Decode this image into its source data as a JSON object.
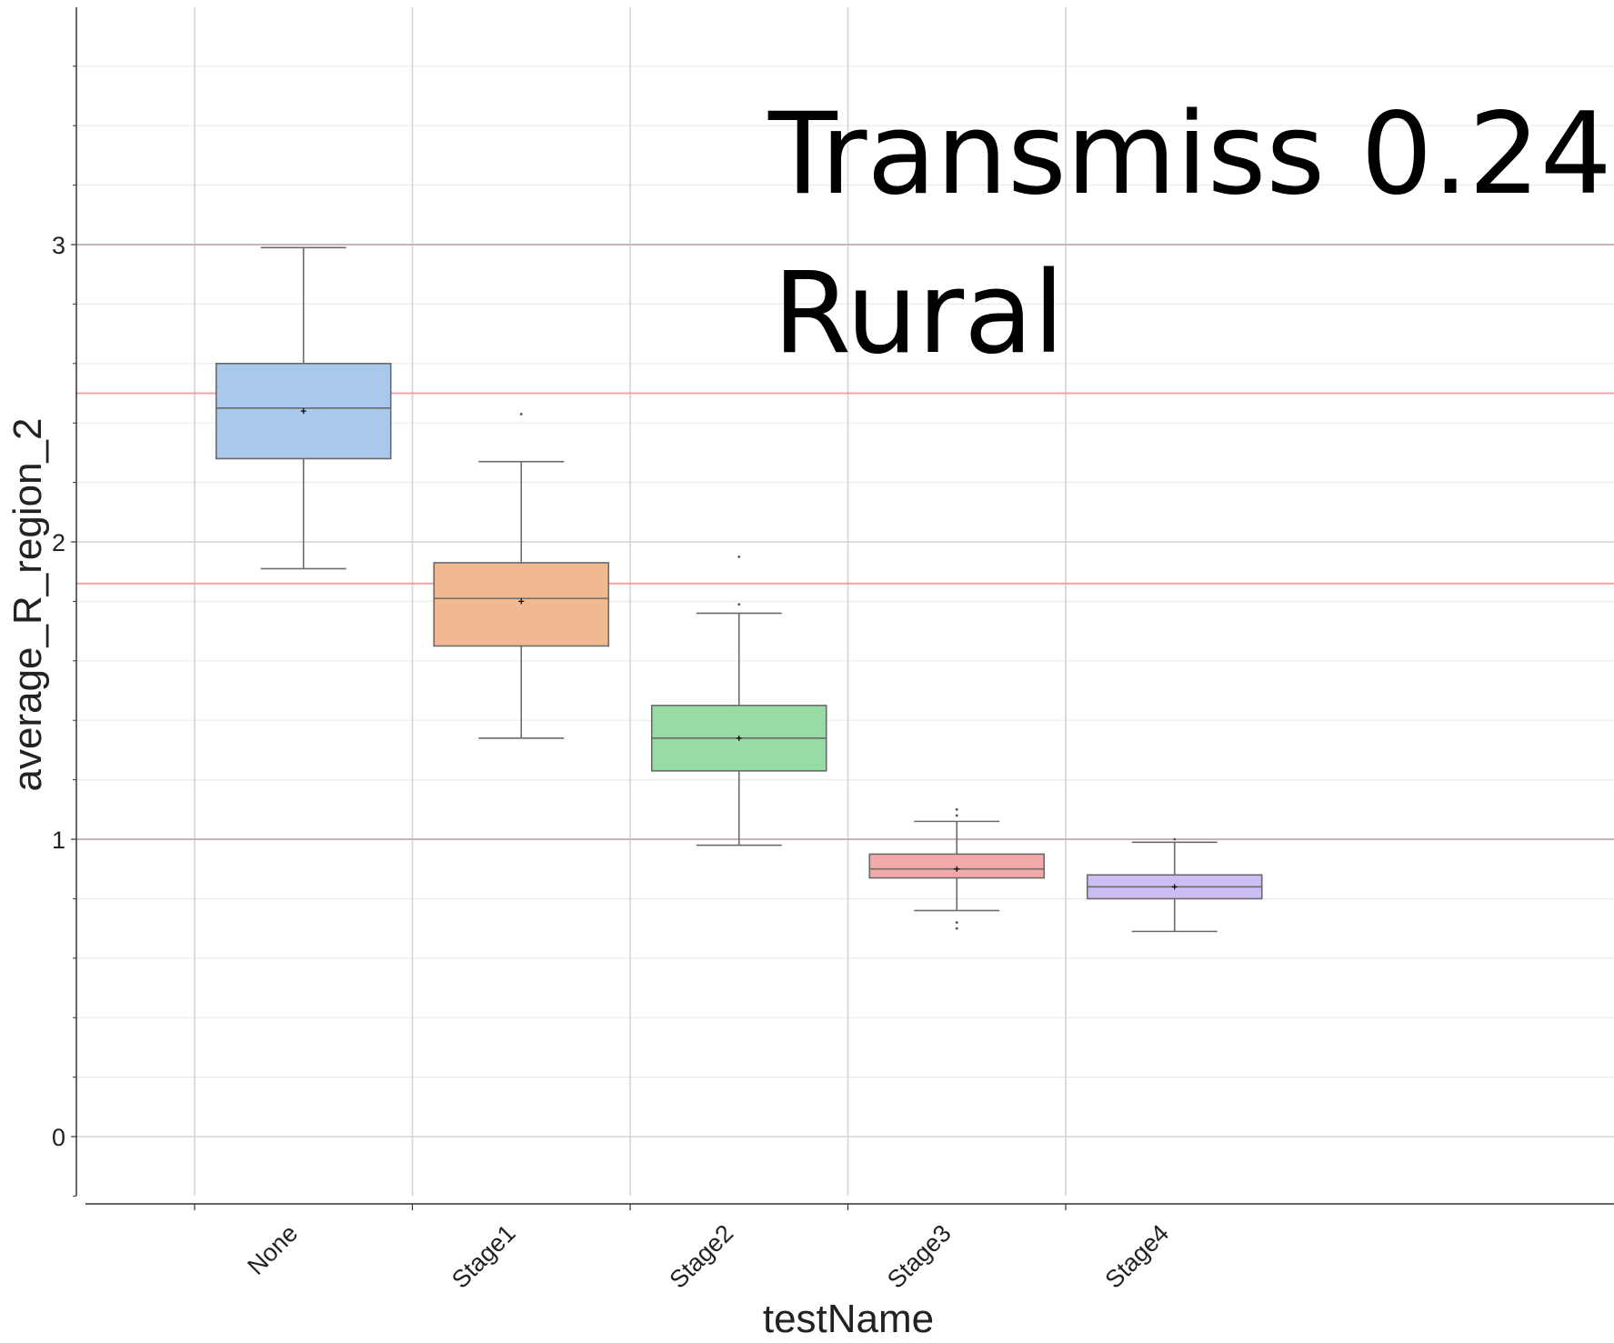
{
  "chart_data": {
    "type": "box",
    "xlabel": "testName",
    "ylabel": "average_R_region_2",
    "ylim": [
      -0.2,
      4.0
    ],
    "yticks": [
      0,
      1,
      2,
      3
    ],
    "grid": "on",
    "annotations": [
      "Transmiss 0.24",
      "Rural"
    ],
    "reference_lines": [
      {
        "y": 3.0,
        "color": "#c8b4b4"
      },
      {
        "y": 2.5,
        "color": "#f4a0a0"
      },
      {
        "y": 1.86,
        "color": "#f4a0a0"
      },
      {
        "y": 1.0,
        "color": "#c8b4b4"
      }
    ],
    "categories": [
      "None",
      "Stage1",
      "Stage2",
      "Stage3",
      "Stage4"
    ],
    "boxes": [
      {
        "name": "None",
        "whisker_low": 1.91,
        "q1": 2.28,
        "median": 2.45,
        "q3": 2.6,
        "whisker_high": 2.99,
        "mean": 2.44,
        "outliers": [],
        "color": "#a9c9ec"
      },
      {
        "name": "Stage1",
        "whisker_low": 1.34,
        "q1": 1.65,
        "median": 1.81,
        "q3": 1.93,
        "whisker_high": 2.27,
        "mean": 1.8,
        "outliers": [
          2.43
        ],
        "color": "#f0b990"
      },
      {
        "name": "Stage2",
        "whisker_low": 0.98,
        "q1": 1.23,
        "median": 1.34,
        "q3": 1.45,
        "whisker_high": 1.76,
        "mean": 1.34,
        "outliers": [
          1.95,
          1.79
        ],
        "color": "#97dba5"
      },
      {
        "name": "Stage3",
        "whisker_low": 0.76,
        "q1": 0.87,
        "median": 0.9,
        "q3": 0.95,
        "whisker_high": 1.06,
        "mean": 0.9,
        "outliers": [
          1.1,
          1.08,
          0.72,
          0.7
        ],
        "color": "#f4a9a9"
      },
      {
        "name": "Stage4",
        "whisker_low": 0.69,
        "q1": 0.8,
        "median": 0.84,
        "q3": 0.88,
        "whisker_high": 0.99,
        "mean": 0.84,
        "outliers": [
          1.0
        ],
        "color": "#cdbdf5"
      }
    ]
  }
}
